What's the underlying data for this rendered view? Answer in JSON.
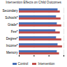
{
  "chart_data": {
    "type": "bar",
    "orientation": "horizontal",
    "title": "Intervention Effects on Child Outcomes",
    "categories": [
      "Secondary",
      "Schools*",
      "Grade*",
      "Fee*",
      "Degree*",
      "Income*",
      "Memory"
    ],
    "series": [
      {
        "name": "Control",
        "color": "#4a6fb5",
        "values": [
          0.52,
          0.5,
          0.51,
          0.49,
          0.5,
          0.52,
          0.51
        ]
      },
      {
        "name": "Intervention",
        "color": "#c0504d",
        "values": [
          0.55,
          0.56,
          0.57,
          0.55,
          0.57,
          0.58,
          0.54
        ]
      }
    ],
    "xlim": [
      0,
      0.6
    ],
    "xticks": [
      0,
      0.2,
      0.4,
      0.6
    ],
    "grid": true,
    "legend": "bottom"
  }
}
